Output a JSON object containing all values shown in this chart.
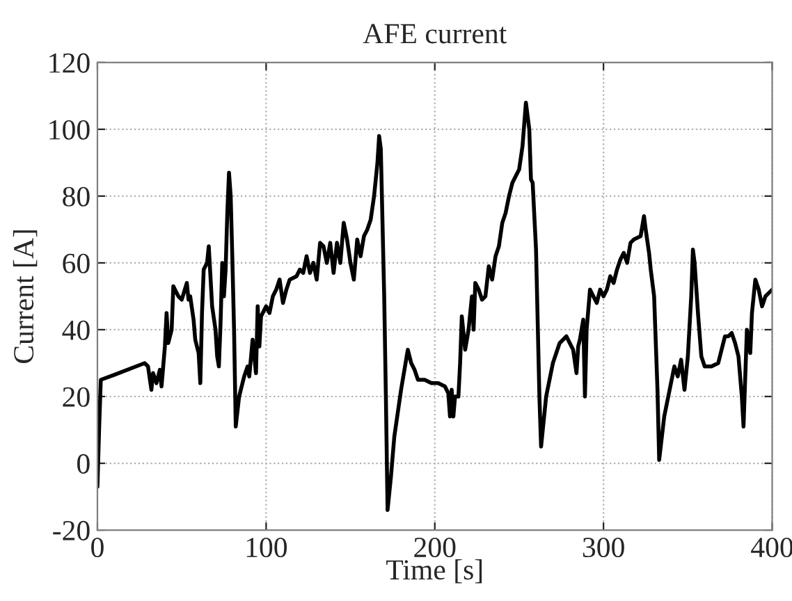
{
  "chart_data": {
    "type": "line",
    "title": "AFE current",
    "xlabel": "Time [s]",
    "ylabel": "Current [A]",
    "xlim": [
      0,
      400
    ],
    "xticks": [
      0,
      100,
      200,
      300,
      400
    ],
    "ylim": [
      -20,
      120
    ],
    "yticks": [
      -20,
      0,
      20,
      40,
      60,
      80,
      100,
      120
    ],
    "grid": true,
    "series": [
      {
        "color": "#000000",
        "x": [
          0,
          1,
          2,
          10,
          28,
          30,
          32,
          33,
          35,
          37,
          38,
          40,
          41,
          42,
          44,
          45,
          48,
          50,
          53,
          54,
          55,
          57,
          58,
          60,
          61,
          62,
          63,
          65,
          66,
          68,
          70,
          71,
          72,
          73,
          74,
          75,
          76,
          77,
          78,
          79,
          80,
          81,
          82,
          84,
          87,
          89,
          90,
          92,
          94,
          95,
          96,
          97,
          98,
          100,
          102,
          104,
          106,
          108,
          110,
          112,
          114,
          118,
          120,
          122,
          124,
          126,
          128,
          130,
          132,
          134,
          136,
          138,
          140,
          142,
          144,
          146,
          148,
          150,
          152,
          154,
          156,
          158,
          160,
          162,
          164,
          166,
          167,
          168,
          170,
          171,
          172,
          174,
          176,
          180,
          184,
          186,
          188,
          190,
          194,
          198,
          202,
          206,
          208,
          209,
          210,
          211,
          212,
          214,
          215,
          216,
          218,
          220,
          222,
          223,
          224,
          226,
          228,
          230,
          232,
          234,
          236,
          238,
          240,
          242,
          244,
          246,
          250,
          252,
          254,
          256,
          257,
          258,
          260,
          262,
          263,
          266,
          270,
          274,
          278,
          280,
          282,
          284,
          285,
          286,
          288,
          289,
          290,
          292,
          294,
          296,
          298,
          300,
          302,
          304,
          306,
          308,
          310,
          312,
          314,
          316,
          318,
          322,
          324,
          325,
          327,
          328,
          330,
          332,
          333,
          336,
          340,
          342,
          344,
          346,
          348,
          350,
          352,
          353,
          354,
          356,
          358,
          360,
          364,
          368,
          370,
          372,
          374,
          376,
          378,
          380,
          382,
          383,
          385,
          387,
          388,
          390,
          392,
          394,
          396,
          398,
          400
        ],
        "values": [
          -7,
          10,
          25,
          26.5,
          30,
          29,
          22,
          27,
          24,
          28,
          23,
          35,
          45,
          36,
          40,
          53,
          50,
          49,
          54,
          49,
          50,
          43,
          37,
          33,
          24,
          45,
          58,
          60,
          65,
          47,
          40,
          32,
          29,
          42,
          60,
          50,
          58,
          75,
          87,
          80,
          61,
          40,
          11,
          20,
          26,
          29,
          26,
          37,
          27,
          47,
          35,
          44,
          45,
          47,
          45,
          50,
          52,
          55,
          48,
          52,
          55,
          56,
          58,
          57,
          62,
          57,
          60,
          55,
          66,
          65,
          60,
          66,
          57,
          66,
          60,
          72,
          67,
          60,
          55,
          67,
          62,
          68,
          70,
          73,
          80,
          90,
          98,
          94,
          50,
          20,
          -14,
          -4,
          8,
          22,
          34,
          30,
          28,
          25,
          25,
          24,
          24,
          23,
          21,
          14,
          22,
          14,
          20,
          20,
          30,
          44,
          34,
          40,
          50,
          40,
          54,
          52,
          49,
          50,
          59,
          55,
          62,
          65,
          72,
          75,
          80,
          84,
          88,
          95,
          108,
          100,
          85,
          84,
          64,
          20,
          5,
          20,
          30,
          36,
          38,
          36,
          34,
          27,
          35,
          37,
          43,
          20,
          40,
          52,
          50,
          48,
          52,
          50,
          52,
          56,
          54,
          58,
          61,
          63,
          60,
          66,
          67,
          68,
          74,
          70,
          63,
          58,
          50,
          22,
          1,
          14,
          24,
          29,
          26,
          31,
          22,
          32,
          50,
          64,
          60,
          45,
          32,
          29,
          29,
          30,
          34,
          38,
          38,
          39,
          36,
          32,
          20,
          11,
          40,
          33,
          45,
          55,
          52,
          47,
          50,
          51,
          52
        ]
      }
    ]
  }
}
